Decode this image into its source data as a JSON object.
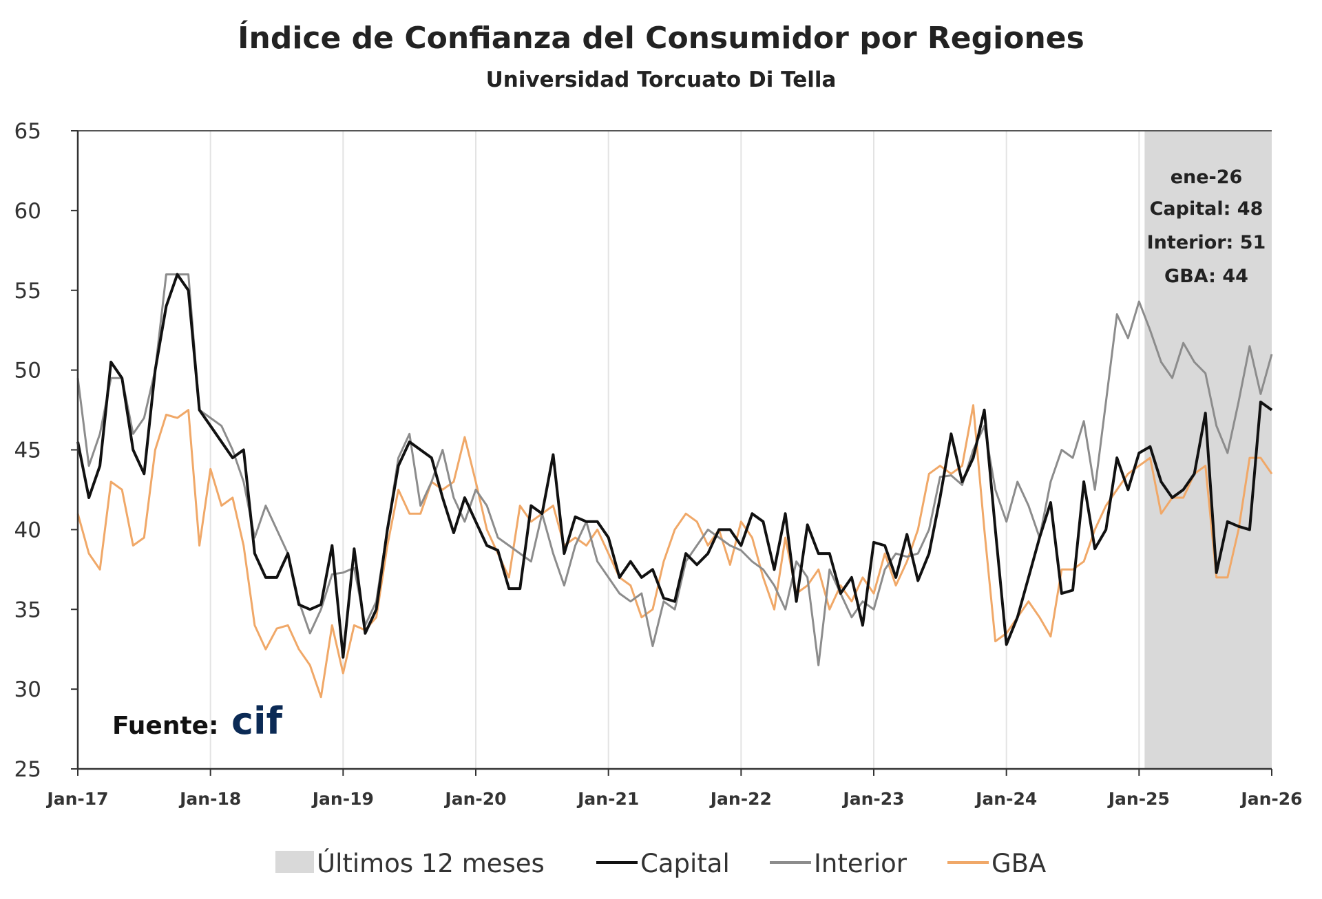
{
  "chart_data": {
    "type": "line",
    "title": "Índice de Confianza del Consumidor por Regiones",
    "subtitle": "Universidad Torcuato Di Tella",
    "ylim": [
      25,
      65
    ],
    "yticks": [
      25,
      30,
      35,
      40,
      45,
      50,
      55,
      60,
      65
    ],
    "xticks": [
      "Jan-17",
      "Jan-18",
      "Jan-19",
      "Jan-20",
      "Jan-21",
      "Jan-22",
      "Jan-23",
      "Jan-24",
      "Jan-25",
      "Jan-26"
    ],
    "x_start": "Jan-17",
    "x_end": "Jan-26",
    "frequency": "monthly",
    "grid": "vertical at each January",
    "legend_position": "bottom",
    "shaded_region": {
      "label": "Últimos 12 meses",
      "from": "Feb-25",
      "to": "Jan-26",
      "color": "#d9d9d9"
    },
    "annotation": [
      "ene-26",
      "Capital: 48",
      "Interior: 51",
      "GBA: 44"
    ],
    "source_label": "Fuente:",
    "source_logo": "cif",
    "series": [
      {
        "name": "Capital",
        "color": "#111111",
        "values": [
          45.5,
          42,
          44,
          50.5,
          49.5,
          45,
          43.5,
          50,
          54,
          56,
          55,
          47.5,
          46.5,
          45.5,
          44.5,
          45,
          38.5,
          37,
          37,
          38.5,
          35.3,
          35,
          35.3,
          39,
          32,
          38.8,
          33.5,
          35,
          40,
          44,
          45.5,
          45,
          44.5,
          42,
          39.8,
          42,
          40.5,
          39,
          38.7,
          36.3,
          36.3,
          41.5,
          41,
          44.7,
          38.5,
          40.8,
          40.5,
          40.5,
          39.5,
          37,
          38,
          37,
          37.5,
          35.7,
          35.5,
          38.5,
          37.8,
          38.5,
          40,
          40,
          39,
          41,
          40.5,
          37.5,
          41,
          35.5,
          40.3,
          38.5,
          38.5,
          36,
          37,
          34,
          39.2,
          39,
          37,
          39.7,
          36.8,
          38.5,
          42,
          46,
          43,
          44.5,
          47.5,
          40,
          32.8,
          34.5,
          37,
          39.5,
          41.7,
          36,
          36.2,
          43,
          38.8,
          40,
          44.5,
          42.5,
          44.8,
          45.2,
          43,
          42,
          42.5,
          43.5,
          47.3,
          37.3,
          40.5,
          40.2,
          40,
          48,
          47.5
        ]
      },
      {
        "name": "Interior",
        "color": "#8c8c8c",
        "values": [
          49.5,
          44,
          46,
          49.5,
          49.5,
          46,
          47,
          50,
          56,
          56,
          56,
          47.5,
          47,
          46.5,
          45,
          43,
          39.5,
          41.5,
          40,
          38.5,
          35.5,
          33.5,
          35,
          37.2,
          37.3,
          37.6,
          34,
          35.5,
          40,
          44.5,
          46,
          41.5,
          43,
          45,
          42,
          40.5,
          42.5,
          41.5,
          39.5,
          39,
          38.5,
          38,
          41,
          38.5,
          36.5,
          39,
          40.5,
          38,
          37,
          36,
          35.5,
          36,
          32.7,
          35.5,
          35,
          38,
          39,
          40,
          39.5,
          39,
          38.7,
          38,
          37.5,
          36.5,
          35,
          38,
          37,
          31.5,
          37.5,
          36,
          34.5,
          35.5,
          35,
          37.5,
          38.5,
          38.3,
          38.5,
          40,
          43.3,
          43.4,
          42.8,
          45,
          46.5,
          42.5,
          40.5,
          43,
          41.5,
          39.5,
          43,
          45,
          44.5,
          46.8,
          42.5,
          48,
          53.5,
          52,
          54.3,
          52.5,
          50.5,
          49.5,
          51.7,
          50.5,
          49.8,
          46.5,
          44.8,
          48,
          51.5,
          48.5,
          51
        ]
      },
      {
        "name": "GBA",
        "color": "#f0a868",
        "values": [
          41,
          38.5,
          37.5,
          43,
          42.5,
          39,
          39.5,
          45,
          47.2,
          47,
          47.5,
          39,
          43.8,
          41.5,
          42,
          39,
          34,
          32.5,
          33.8,
          34,
          32.5,
          31.5,
          29.5,
          34,
          31,
          34,
          33.7,
          34.5,
          39,
          42.5,
          41,
          41,
          43,
          42.5,
          43,
          45.8,
          43,
          40,
          38.5,
          37,
          41.5,
          40.5,
          41,
          41.5,
          39,
          39.5,
          39,
          40,
          38.5,
          37,
          36.5,
          34.5,
          35,
          38,
          40,
          41,
          40.5,
          39,
          40,
          37.8,
          40.5,
          39.5,
          37,
          35,
          39.5,
          36,
          36.5,
          37.5,
          35,
          36.5,
          35.5,
          37,
          36,
          38.5,
          36.5,
          38,
          40,
          43.5,
          44,
          43.5,
          44,
          47.8,
          40,
          33,
          33.5,
          34.5,
          35.5,
          34.5,
          33.3,
          37.5,
          37.5,
          38,
          40,
          41.5,
          42.5,
          43.5,
          44,
          44.5,
          41,
          42,
          42,
          43.5,
          44,
          37,
          37,
          40,
          44.5,
          44.5,
          43.5
        ]
      }
    ]
  }
}
